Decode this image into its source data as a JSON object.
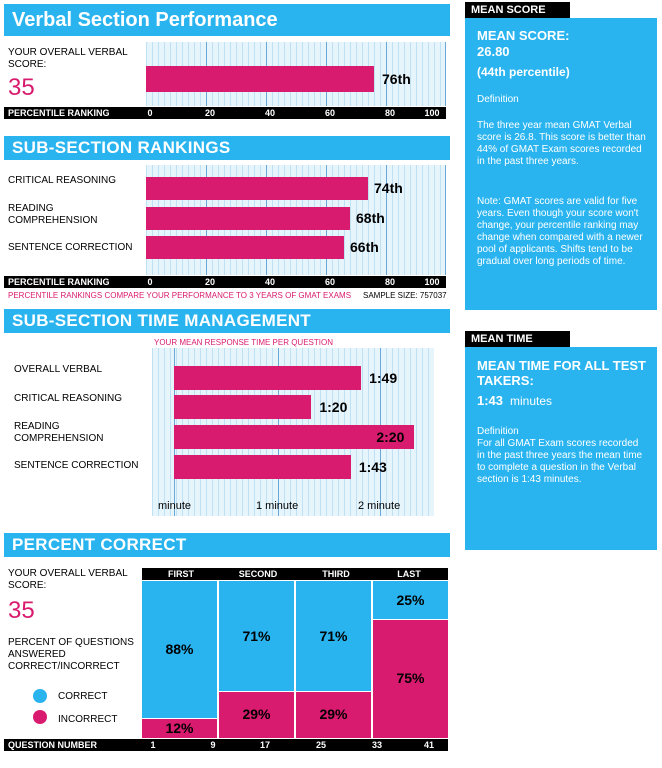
{
  "verbal_performance": {
    "title": "Verbal Section Performance",
    "overall_label": "YOUR OVERALL VERBAL SCORE:",
    "overall_score": "35",
    "percentile_value": 76,
    "percentile_label": "76th",
    "axis_label": "PERCENTILE RANKING",
    "ticks": [
      "0",
      "20",
      "40",
      "60",
      "80",
      "100"
    ]
  },
  "subsection_rankings": {
    "title": "SUB-SECTION RANKINGS",
    "rows": [
      {
        "label": "CRITICAL REASONING",
        "value": 74,
        "display": "74th"
      },
      {
        "label": "READING COMPREHENSION",
        "value": 68,
        "display": "68th"
      },
      {
        "label": "SENTENCE CORRECTION",
        "value": 66,
        "display": "66th"
      }
    ],
    "axis_label": "PERCENTILE RANKING",
    "ticks": [
      "0",
      "20",
      "40",
      "60",
      "80",
      "100"
    ],
    "footnote": "PERCENTILE RANKINGS COMPARE YOUR PERFORMANCE TO 3 YEARS OF GMAT EXAMS",
    "sample_size": "SAMPLE SIZE: 757037"
  },
  "time_management": {
    "title": "SUB-SECTION TIME MANAGEMENT",
    "subtitle": "YOUR MEAN RESPONSE TIME PER QUESTION",
    "rows": [
      {
        "label": "OVERALL VERBAL",
        "seconds": 109,
        "display": "1:49"
      },
      {
        "label": "CRITICAL REASONING",
        "seconds": 80,
        "display": "1:20"
      },
      {
        "label": "READING COMPREHENSION",
        "seconds": 140,
        "display": "2:20"
      },
      {
        "label": "SENTENCE CORRECTION",
        "seconds": 103,
        "display": "1:43"
      }
    ],
    "ticks": [
      "minute",
      "1 minute",
      "2 minute"
    ]
  },
  "percent_correct": {
    "title": "PERCENT CORRECT",
    "overall_label": "YOUR OVERALL VERBAL SCORE:",
    "overall_score": "35",
    "desc": "PERCENT OF QUESTIONS ANSWERED CORRECT/INCORRECT",
    "legend_correct": "CORRECT",
    "legend_incorrect": "INCORRECT",
    "columns": [
      {
        "name": "FIRST",
        "correct": 88,
        "incorrect": 12,
        "correct_display": "88%",
        "incorrect_display": "12%"
      },
      {
        "name": "SECOND",
        "correct": 71,
        "incorrect": 29,
        "correct_display": "71%",
        "incorrect_display": "29%"
      },
      {
        "name": "THIRD",
        "correct": 71,
        "incorrect": 29,
        "correct_display": "71%",
        "incorrect_display": "29%"
      },
      {
        "name": "LAST",
        "correct": 25,
        "incorrect": 75,
        "correct_display": "25%",
        "incorrect_display": "75%"
      }
    ],
    "axis_label": "QUESTION NUMBER",
    "question_ticks": [
      "1",
      "9",
      "17",
      "25",
      "33",
      "41"
    ]
  },
  "mean_score": {
    "header": "MEAN SCORE",
    "title": "MEAN SCORE:",
    "value": "26.80",
    "percentile": "(44th percentile)",
    "definition_label": "Definition",
    "definition": "The three year mean GMAT Verbal  score is 26.8. This score is better than 44% of GMAT Exam scores recorded in the past three years.",
    "note": "Note:  GMAT scores are valid for five years. Even though your score won't change, your percentile ranking may change when compared with a newer pool of applicants.  Shifts tend to be gradual over long periods of time."
  },
  "mean_time": {
    "header": "MEAN TIME",
    "title": "MEAN TIME FOR ALL TEST TAKERS:",
    "value": "1:43",
    "unit": "minutes",
    "definition_label": "Definition",
    "definition": "For all GMAT Exam scores recorded in the past three years the mean time to complete a question in the Verbal section is 1:43 minutes."
  },
  "colors": {
    "accent_blue": "#29b4f0",
    "magenta": "#d81b6e",
    "black": "#000000"
  }
}
